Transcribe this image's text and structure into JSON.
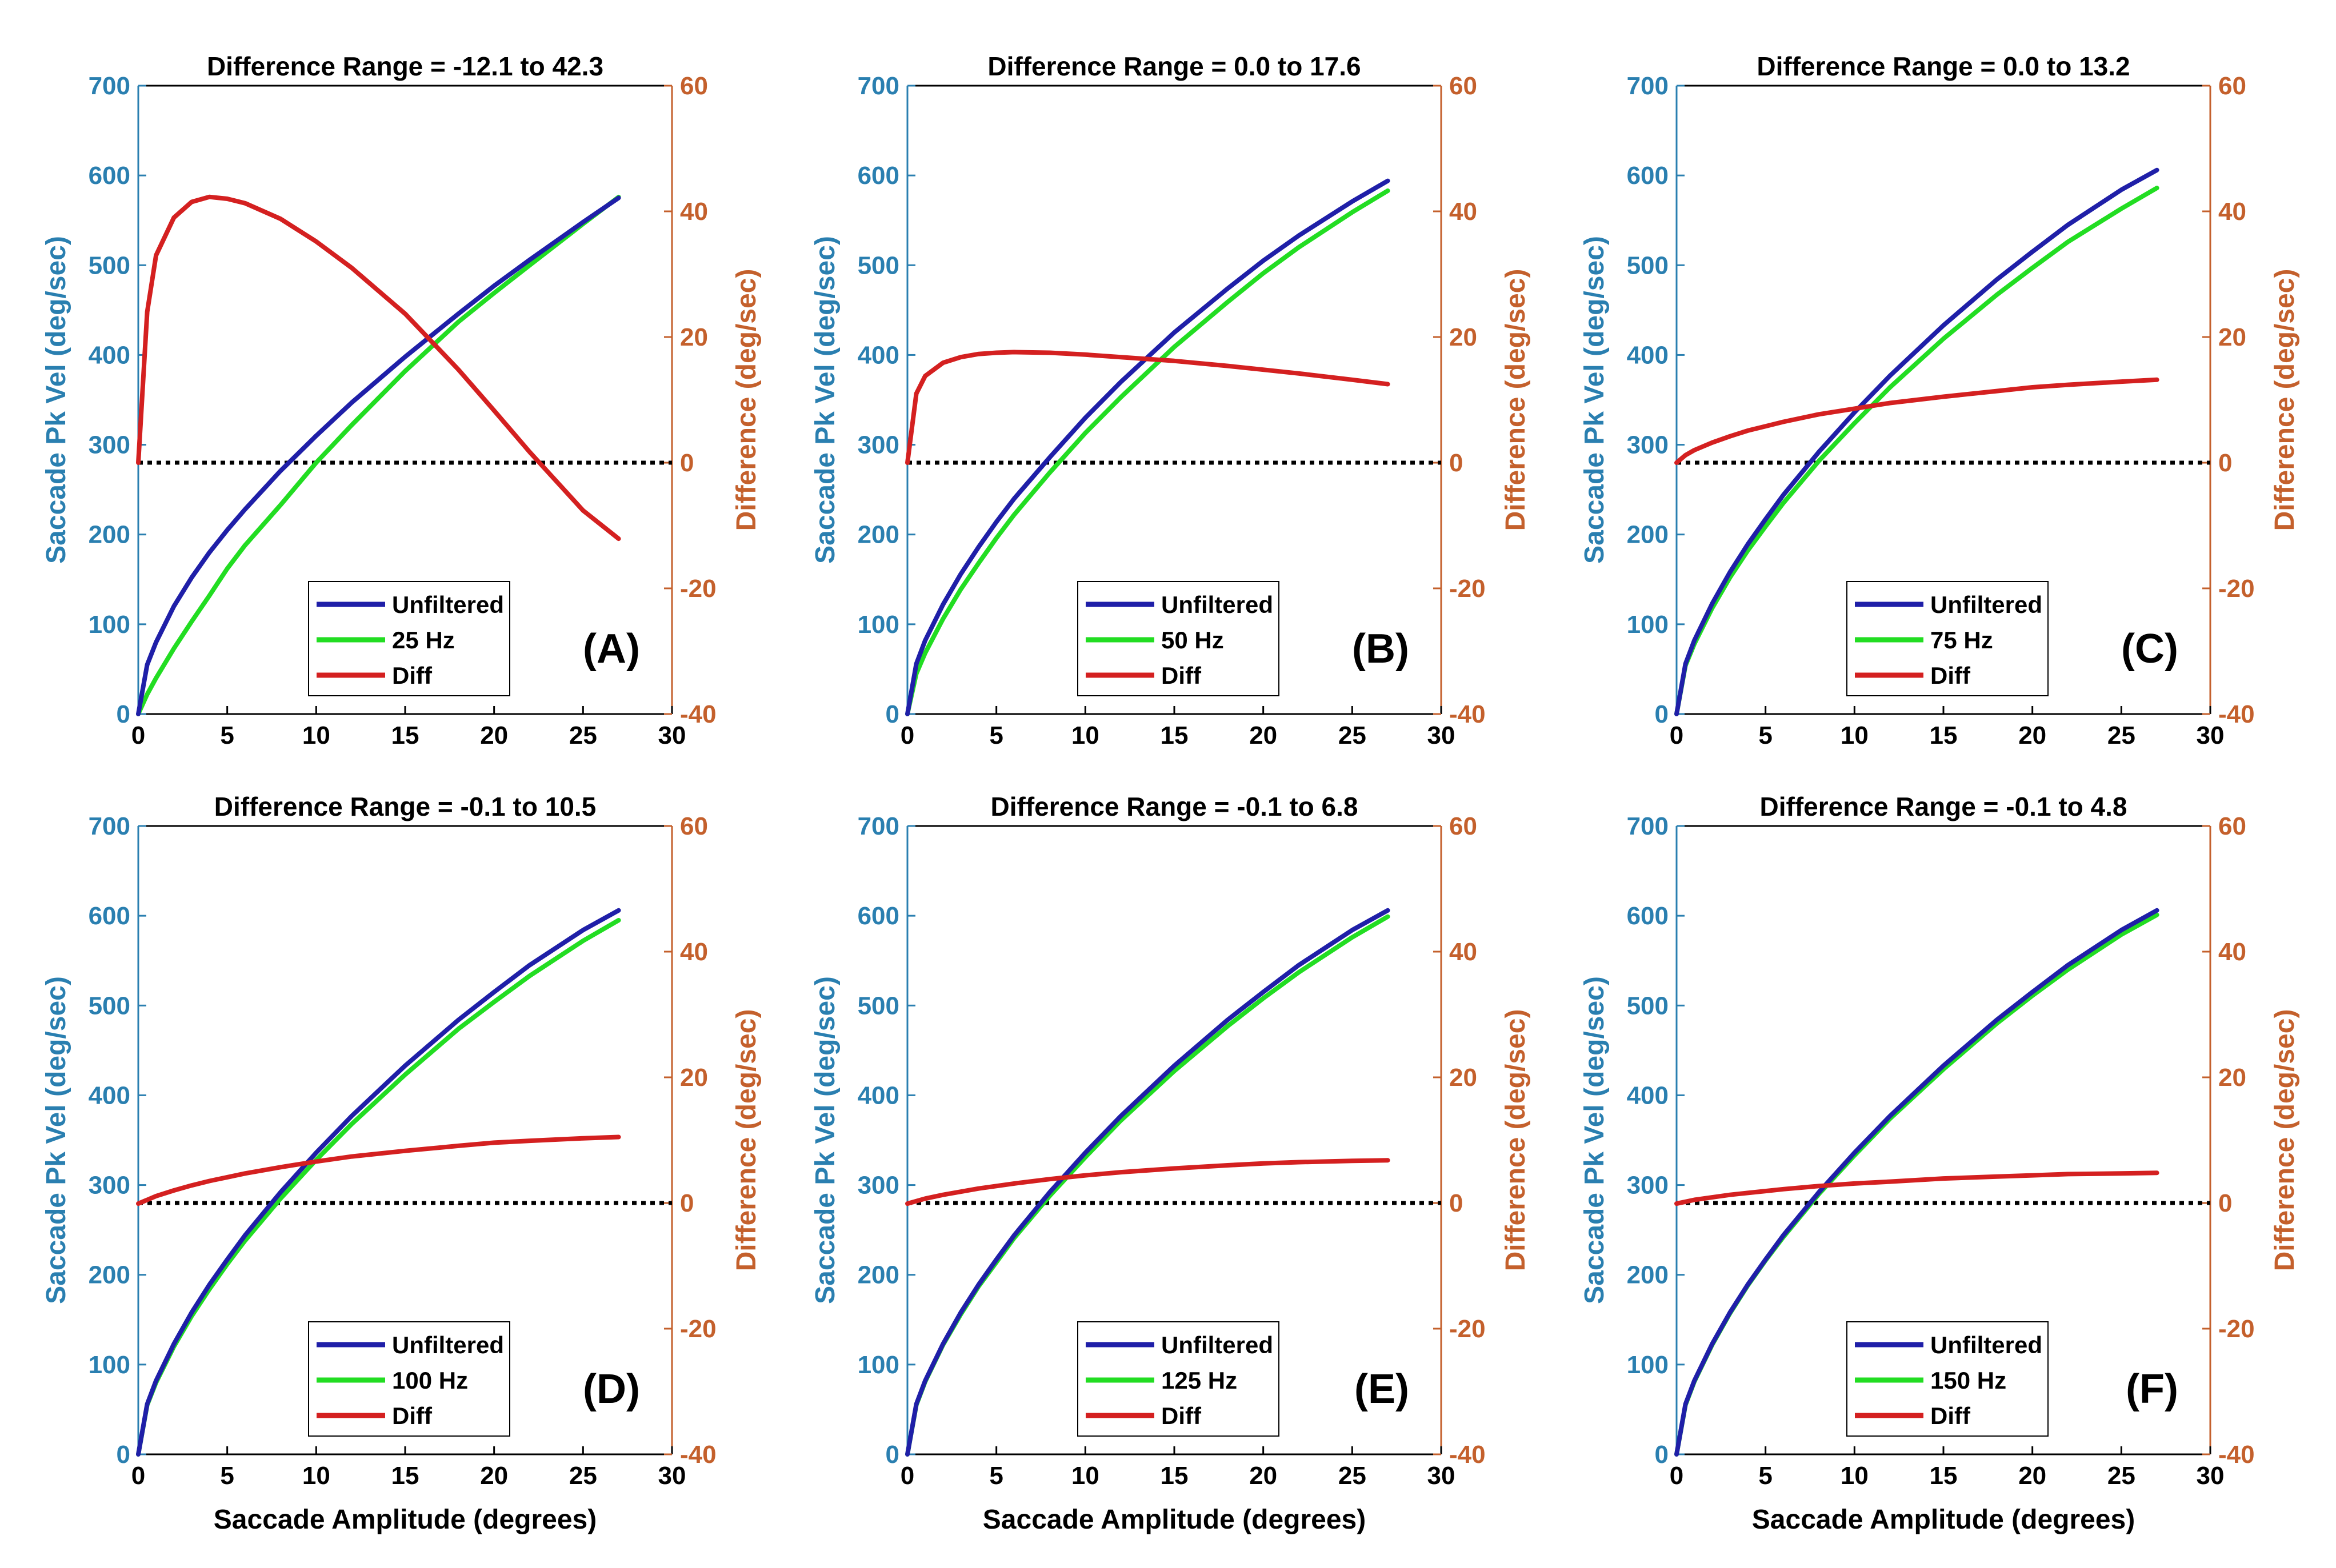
{
  "colors": {
    "left_axis": "#2a7fb0",
    "right_axis": "#c4602c",
    "unfiltered": "#1f1fa8",
    "filtered": "#22dd22",
    "diff": "#d42020",
    "zero_line": "#000000",
    "frame": "#000000"
  },
  "chart_data": [
    {
      "panel": "(A)",
      "type": "line",
      "title": "Difference Range = -12.1 to 42.3",
      "xlabel": "",
      "ylabel": "Saccade Pk Vel (deg/sec)",
      "y2label": "Difference (deg/sec)",
      "xlim": [
        0,
        30
      ],
      "ylim": [
        0,
        700
      ],
      "y2lim": [
        -40,
        60
      ],
      "xticks": [
        "0",
        "5",
        "10",
        "15",
        "20",
        "25",
        "30"
      ],
      "yticks": [
        "0",
        "100",
        "200",
        "300",
        "400",
        "500",
        "600",
        "700"
      ],
      "y2ticks": [
        "-40",
        "-20",
        "0",
        "20",
        "40",
        "60"
      ],
      "legend": {
        "position": "bottom-center",
        "entries": [
          "Unfiltered",
          "25 Hz",
          "Diff"
        ]
      },
      "x": [
        0,
        0.5,
        1,
        2,
        3,
        4,
        5,
        6,
        8,
        10,
        12,
        15,
        18,
        20,
        22,
        25,
        27
      ],
      "series": [
        {
          "name": "Unfiltered",
          "axis": "left",
          "values": [
            0,
            55,
            80,
            120,
            152,
            180,
            205,
            228,
            271,
            310,
            347,
            398,
            446,
            477,
            506,
            548,
            575
          ]
        },
        {
          "name": "25 Hz",
          "axis": "left",
          "values": [
            0,
            22,
            40,
            73,
            103,
            132,
            162,
            188,
            233,
            280,
            322,
            382,
            437,
            469,
            500,
            546,
            576
          ]
        },
        {
          "name": "Diff",
          "axis": "right",
          "values": [
            0,
            24,
            33,
            39,
            41.5,
            42.3,
            42,
            41.3,
            38.8,
            35.2,
            31,
            23.7,
            14.8,
            8.3,
            1.7,
            -7.6,
            -12.1
          ]
        }
      ]
    },
    {
      "panel": "(B)",
      "type": "line",
      "title": "Difference Range = 0.0 to 17.6",
      "xlabel": "",
      "ylabel": "Saccade Pk Vel (deg/sec)",
      "y2label": "Difference (deg/sec)",
      "xlim": [
        0,
        30
      ],
      "ylim": [
        0,
        700
      ],
      "y2lim": [
        -40,
        60
      ],
      "xticks": [
        "0",
        "5",
        "10",
        "15",
        "20",
        "25",
        "30"
      ],
      "yticks": [
        "0",
        "100",
        "200",
        "300",
        "400",
        "500",
        "600",
        "700"
      ],
      "y2ticks": [
        "-40",
        "-20",
        "0",
        "20",
        "40",
        "60"
      ],
      "legend": {
        "position": "bottom-center",
        "entries": [
          "Unfiltered",
          "50 Hz",
          "Diff"
        ]
      },
      "x": [
        0,
        0.5,
        1,
        2,
        3,
        4,
        5,
        6,
        8,
        10,
        12,
        15,
        18,
        20,
        22,
        25,
        27
      ],
      "series": [
        {
          "name": "Unfiltered",
          "axis": "left",
          "values": [
            0,
            56,
            82,
            122,
            156,
            186,
            214,
            240,
            286,
            330,
            370,
            425,
            474,
            505,
            533,
            571,
            594
          ]
        },
        {
          "name": "50 Hz",
          "axis": "left",
          "values": [
            0,
            45,
            68,
            106,
            139,
            168,
            196,
            222,
            269,
            313,
            353,
            409,
            459,
            491,
            520,
            559,
            583
          ]
        },
        {
          "name": "Diff",
          "axis": "right",
          "values": [
            0,
            11,
            13.8,
            15.9,
            16.8,
            17.3,
            17.5,
            17.6,
            17.5,
            17.2,
            16.8,
            16.2,
            15.4,
            14.8,
            14.2,
            13.2,
            12.5
          ]
        }
      ]
    },
    {
      "panel": "(C)",
      "type": "line",
      "title": "Difference Range = 0.0 to 13.2",
      "xlabel": "",
      "ylabel": "Saccade Pk Vel (deg/sec)",
      "y2label": "Difference (deg/sec)",
      "xlim": [
        0,
        30
      ],
      "ylim": [
        0,
        700
      ],
      "y2lim": [
        -40,
        60
      ],
      "xticks": [
        "0",
        "5",
        "10",
        "15",
        "20",
        "25",
        "30"
      ],
      "yticks": [
        "0",
        "100",
        "200",
        "300",
        "400",
        "500",
        "600",
        "700"
      ],
      "y2ticks": [
        "-40",
        "-20",
        "0",
        "20",
        "40",
        "60"
      ],
      "legend": {
        "position": "bottom-center",
        "entries": [
          "Unfiltered",
          "75 Hz",
          "Diff"
        ]
      },
      "x": [
        0,
        0.5,
        1,
        2,
        3,
        4,
        5,
        6,
        8,
        10,
        12,
        15,
        18,
        20,
        22,
        25,
        27
      ],
      "series": [
        {
          "name": "Unfiltered",
          "axis": "left",
          "values": [
            0,
            56,
            82,
            123,
            158,
            189,
            217,
            244,
            292,
            336,
            377,
            433,
            484,
            515,
            545,
            584,
            606
          ]
        },
        {
          "name": "75 Hz",
          "axis": "left",
          "values": [
            0,
            54,
            78,
            118,
            152,
            182,
            209,
            235,
            282,
            324,
            364,
            418,
            467,
            497,
            526,
            563,
            586
          ]
        },
        {
          "name": "Diff",
          "axis": "right",
          "values": [
            0,
            1.2,
            2,
            3.2,
            4.2,
            5.1,
            5.8,
            6.5,
            7.7,
            8.6,
            9.5,
            10.5,
            11.4,
            12,
            12.4,
            12.9,
            13.2
          ]
        }
      ]
    },
    {
      "panel": "(D)",
      "type": "line",
      "title": "Difference Range = -0.1 to 10.5",
      "xlabel": "Saccade Amplitude (degrees)",
      "ylabel": "Saccade Pk Vel (deg/sec)",
      "y2label": "Difference (deg/sec)",
      "xlim": [
        0,
        30
      ],
      "ylim": [
        0,
        700
      ],
      "y2lim": [
        -40,
        60
      ],
      "xticks": [
        "0",
        "5",
        "10",
        "15",
        "20",
        "25",
        "30"
      ],
      "yticks": [
        "0",
        "100",
        "200",
        "300",
        "400",
        "500",
        "600",
        "700"
      ],
      "y2ticks": [
        "-40",
        "-20",
        "0",
        "20",
        "40",
        "60"
      ],
      "legend": {
        "position": "bottom-center",
        "entries": [
          "Unfiltered",
          "100 Hz",
          "Diff"
        ]
      },
      "x": [
        0,
        0.5,
        1,
        2,
        3,
        4,
        5,
        6,
        8,
        10,
        12,
        15,
        18,
        20,
        22,
        25,
        27
      ],
      "series": [
        {
          "name": "Unfiltered",
          "axis": "left",
          "values": [
            0,
            56,
            82,
            123,
            158,
            189,
            217,
            244,
            292,
            336,
            377,
            433,
            484,
            515,
            545,
            584,
            606
          ]
        },
        {
          "name": "100 Hz",
          "axis": "left",
          "values": [
            0,
            55,
            80,
            120,
            154,
            184,
            212,
            238,
            285,
            328,
            368,
            423,
            474,
            504,
            533,
            572,
            595
          ]
        },
        {
          "name": "Diff",
          "axis": "right",
          "values": [
            -0.1,
            0.5,
            1.1,
            2,
            2.8,
            3.5,
            4.1,
            4.7,
            5.7,
            6.6,
            7.4,
            8.3,
            9.1,
            9.6,
            9.9,
            10.3,
            10.5
          ]
        }
      ]
    },
    {
      "panel": "(E)",
      "type": "line",
      "title": "Difference Range = -0.1 to 6.8",
      "xlabel": "Saccade Amplitude (degrees)",
      "ylabel": "Saccade Pk Vel (deg/sec)",
      "y2label": "Difference (deg/sec)",
      "xlim": [
        0,
        30
      ],
      "ylim": [
        0,
        700
      ],
      "y2lim": [
        -40,
        60
      ],
      "xticks": [
        "0",
        "5",
        "10",
        "15",
        "20",
        "25",
        "30"
      ],
      "yticks": [
        "0",
        "100",
        "200",
        "300",
        "400",
        "500",
        "600",
        "700"
      ],
      "y2ticks": [
        "-40",
        "-20",
        "0",
        "20",
        "40",
        "60"
      ],
      "legend": {
        "position": "bottom-center",
        "entries": [
          "Unfiltered",
          "125 Hz",
          "Diff"
        ]
      },
      "x": [
        0,
        0.5,
        1,
        2,
        3,
        4,
        5,
        6,
        8,
        10,
        12,
        15,
        18,
        20,
        22,
        25,
        27
      ],
      "series": [
        {
          "name": "Unfiltered",
          "axis": "left",
          "values": [
            0,
            56,
            82,
            123,
            158,
            189,
            217,
            244,
            292,
            336,
            377,
            433,
            484,
            515,
            545,
            584,
            606
          ]
        },
        {
          "name": "125 Hz",
          "axis": "left",
          "values": [
            0,
            55,
            81,
            122,
            156,
            187,
            214,
            241,
            288,
            331,
            372,
            427,
            477,
            508,
            537,
            576,
            599
          ]
        },
        {
          "name": "Diff",
          "axis": "right",
          "values": [
            -0.1,
            0.3,
            0.7,
            1.3,
            1.8,
            2.3,
            2.7,
            3.1,
            3.8,
            4.4,
            4.9,
            5.5,
            6,
            6.3,
            6.5,
            6.7,
            6.8
          ]
        }
      ]
    },
    {
      "panel": "(F)",
      "type": "line",
      "title": "Difference Range = -0.1 to 4.8",
      "xlabel": "Saccade Amplitude (degrees)",
      "ylabel": "Saccade Pk Vel (deg/sec)",
      "y2label": "Difference (deg/sec)",
      "xlim": [
        0,
        30
      ],
      "ylim": [
        0,
        700
      ],
      "y2lim": [
        -40,
        60
      ],
      "xticks": [
        "0",
        "5",
        "10",
        "15",
        "20",
        "25",
        "30"
      ],
      "yticks": [
        "0",
        "100",
        "200",
        "300",
        "400",
        "500",
        "600",
        "700"
      ],
      "y2ticks": [
        "-40",
        "-20",
        "0",
        "20",
        "40",
        "60"
      ],
      "legend": {
        "position": "bottom-center",
        "entries": [
          "Unfiltered",
          "150 Hz",
          "Diff"
        ]
      },
      "x": [
        0,
        0.5,
        1,
        2,
        3,
        4,
        5,
        6,
        8,
        10,
        12,
        15,
        18,
        20,
        22,
        25,
        27
      ],
      "series": [
        {
          "name": "Unfiltered",
          "axis": "left",
          "values": [
            0,
            56,
            82,
            123,
            158,
            189,
            217,
            244,
            292,
            336,
            377,
            433,
            484,
            515,
            545,
            584,
            606
          ]
        },
        {
          "name": "150 Hz",
          "axis": "left",
          "values": [
            0,
            55,
            81,
            122,
            157,
            188,
            216,
            242,
            290,
            333,
            374,
            429,
            480,
            511,
            540,
            579,
            601
          ]
        },
        {
          "name": "Diff",
          "axis": "right",
          "values": [
            -0.1,
            0.2,
            0.5,
            0.9,
            1.3,
            1.6,
            1.9,
            2.2,
            2.7,
            3.1,
            3.4,
            3.9,
            4.2,
            4.4,
            4.6,
            4.7,
            4.8
          ]
        }
      ]
    }
  ]
}
